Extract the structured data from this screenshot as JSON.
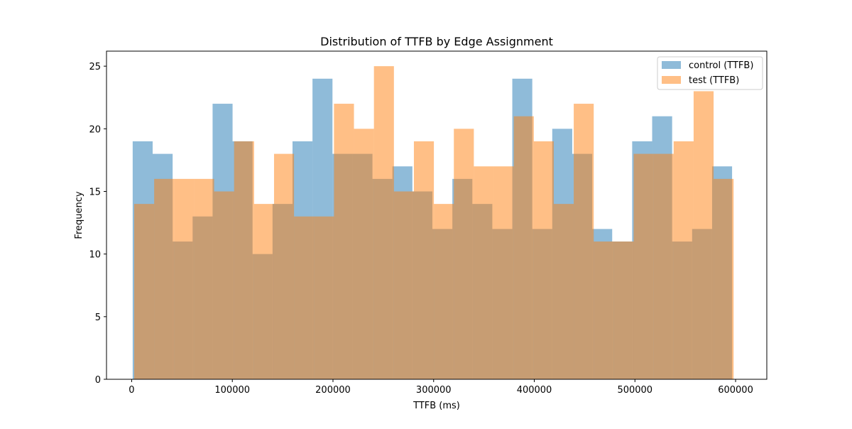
{
  "chart_data": {
    "type": "bar",
    "subtype": "overlapping-histogram",
    "title": "Distribution of TTFB by Edge Assignment",
    "xlabel": "TTFB (ms)",
    "ylabel": "Frequency",
    "xlim": [
      -25000,
      631000
    ],
    "ylim": [
      0,
      26.2
    ],
    "x_ticks": [
      0,
      100000,
      200000,
      300000,
      400000,
      500000,
      600000
    ],
    "x_tick_labels": [
      "0",
      "100000",
      "200000",
      "300000",
      "400000",
      "500000",
      "600000"
    ],
    "y_ticks": [
      0,
      5,
      10,
      15,
      20,
      25
    ],
    "y_tick_labels": [
      "0",
      "5",
      "10",
      "15",
      "20",
      "25"
    ],
    "grid": false,
    "legend_position": "top-right",
    "series": [
      {
        "name": "control (TTFB)",
        "color": "#1f77b4",
        "opacity": 0.5,
        "bin_start": 1000,
        "bin_width": 19850,
        "counts": [
          19,
          18,
          11,
          13,
          22,
          19,
          10,
          14,
          19,
          24,
          18,
          18,
          16,
          17,
          15,
          12,
          16,
          14,
          12,
          24,
          12,
          20,
          18,
          12,
          11,
          19,
          21,
          11,
          12,
          17
        ]
      },
      {
        "name": "test (TTFB)",
        "color": "#ff7f0e",
        "opacity": 0.5,
        "bin_start": 2500,
        "bin_width": 19850,
        "counts": [
          14,
          16,
          16,
          16,
          15,
          19,
          14,
          18,
          13,
          13,
          22,
          20,
          25,
          15,
          19,
          14,
          20,
          17,
          17,
          21,
          19,
          14,
          22,
          11,
          11,
          18,
          18,
          19,
          23,
          16
        ]
      }
    ]
  }
}
